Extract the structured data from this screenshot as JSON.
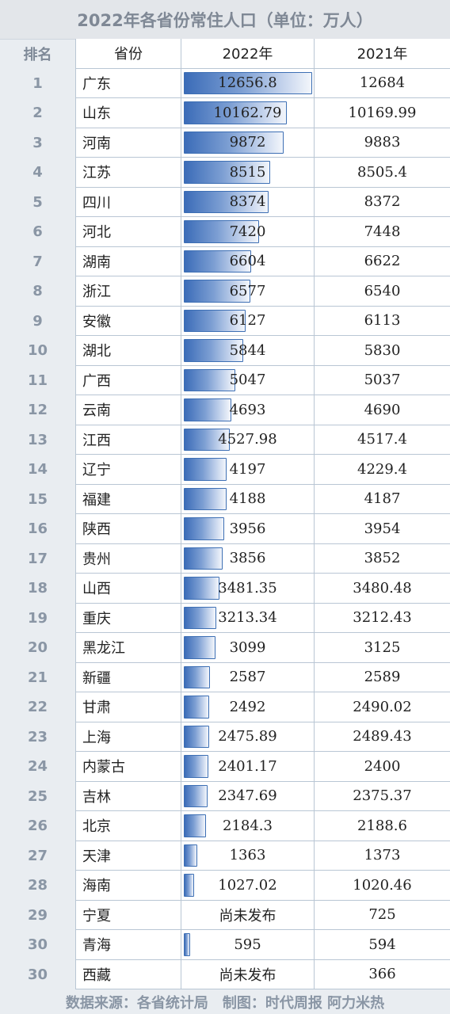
{
  "title": "2022年各省份常住人口（单位：万人）",
  "headers": {
    "rank": "排名",
    "province": "省份",
    "y2022": "2022年",
    "y2021": "2021年"
  },
  "bar_max": 12656.8,
  "rows": [
    {
      "rank": "1",
      "province": "广东",
      "v2022": "12656.8",
      "v2021": "12684",
      "bar": 12656.8
    },
    {
      "rank": "2",
      "province": "山东",
      "v2022": "10162.79",
      "v2021": "10169.99",
      "bar": 10162.79
    },
    {
      "rank": "3",
      "province": "河南",
      "v2022": "9872",
      "v2021": "9883",
      "bar": 9872
    },
    {
      "rank": "4",
      "province": "江苏",
      "v2022": "8515",
      "v2021": "8505.4",
      "bar": 8515
    },
    {
      "rank": "5",
      "province": "四川",
      "v2022": "8374",
      "v2021": "8372",
      "bar": 8374
    },
    {
      "rank": "6",
      "province": "河北",
      "v2022": "7420",
      "v2021": "7448",
      "bar": 7420
    },
    {
      "rank": "7",
      "province": "湖南",
      "v2022": "6604",
      "v2021": "6622",
      "bar": 6604
    },
    {
      "rank": "8",
      "province": "浙江",
      "v2022": "6577",
      "v2021": "6540",
      "bar": 6577
    },
    {
      "rank": "9",
      "province": "安徽",
      "v2022": "6127",
      "v2021": "6113",
      "bar": 6127
    },
    {
      "rank": "10",
      "province": "湖北",
      "v2022": "5844",
      "v2021": "5830",
      "bar": 5844
    },
    {
      "rank": "11",
      "province": "广西",
      "v2022": "5047",
      "v2021": "5037",
      "bar": 5047
    },
    {
      "rank": "12",
      "province": "云南",
      "v2022": "4693",
      "v2021": "4690",
      "bar": 4693
    },
    {
      "rank": "13",
      "province": "江西",
      "v2022": "4527.98",
      "v2021": "4517.4",
      "bar": 4527.98
    },
    {
      "rank": "14",
      "province": "辽宁",
      "v2022": "4197",
      "v2021": "4229.4",
      "bar": 4197
    },
    {
      "rank": "15",
      "province": "福建",
      "v2022": "4188",
      "v2021": "4187",
      "bar": 4188
    },
    {
      "rank": "16",
      "province": "陕西",
      "v2022": "3956",
      "v2021": "3954",
      "bar": 3956
    },
    {
      "rank": "17",
      "province": "贵州",
      "v2022": "3856",
      "v2021": "3852",
      "bar": 3856
    },
    {
      "rank": "18",
      "province": "山西",
      "v2022": "3481.35",
      "v2021": "3480.48",
      "bar": 3481.35
    },
    {
      "rank": "19",
      "province": "重庆",
      "v2022": "3213.34",
      "v2021": "3212.43",
      "bar": 3213.34
    },
    {
      "rank": "20",
      "province": "黑龙江",
      "v2022": "3099",
      "v2021": "3125",
      "bar": 3099
    },
    {
      "rank": "21",
      "province": "新疆",
      "v2022": "2587",
      "v2021": "2589",
      "bar": 2587
    },
    {
      "rank": "22",
      "province": "甘肃",
      "v2022": "2492",
      "v2021": "2490.02",
      "bar": 2492
    },
    {
      "rank": "23",
      "province": "上海",
      "v2022": "2475.89",
      "v2021": "2489.43",
      "bar": 2475.89
    },
    {
      "rank": "24",
      "province": "内蒙古",
      "v2022": "2401.17",
      "v2021": "2400",
      "bar": 2401.17
    },
    {
      "rank": "25",
      "province": "吉林",
      "v2022": "2347.69",
      "v2021": "2375.37",
      "bar": 2347.69
    },
    {
      "rank": "26",
      "province": "北京",
      "v2022": "2184.3",
      "v2021": "2188.6",
      "bar": 2184.3
    },
    {
      "rank": "27",
      "province": "天津",
      "v2022": "1363",
      "v2021": "1373",
      "bar": 1363
    },
    {
      "rank": "28",
      "province": "海南",
      "v2022": "1027.02",
      "v2021": "1020.46",
      "bar": 1027.02
    },
    {
      "rank": "29",
      "province": "宁夏",
      "v2022": "尚未发布",
      "v2021": "725",
      "bar": null
    },
    {
      "rank": "30",
      "province": "青海",
      "v2022": "595",
      "v2021": "594",
      "bar": 595
    },
    {
      "rank": "30",
      "province": "西藏",
      "v2022": "尚未发布",
      "v2021": "366",
      "bar": null
    }
  ],
  "footer": "数据来源：各省统计局　制图：时代周报 阿力米热",
  "colors": {
    "bar_dark": "#3b6cb8",
    "bar_light": "#f3f6fb",
    "border": "#b9c6d4",
    "rank_text": "#8a96a5"
  }
}
